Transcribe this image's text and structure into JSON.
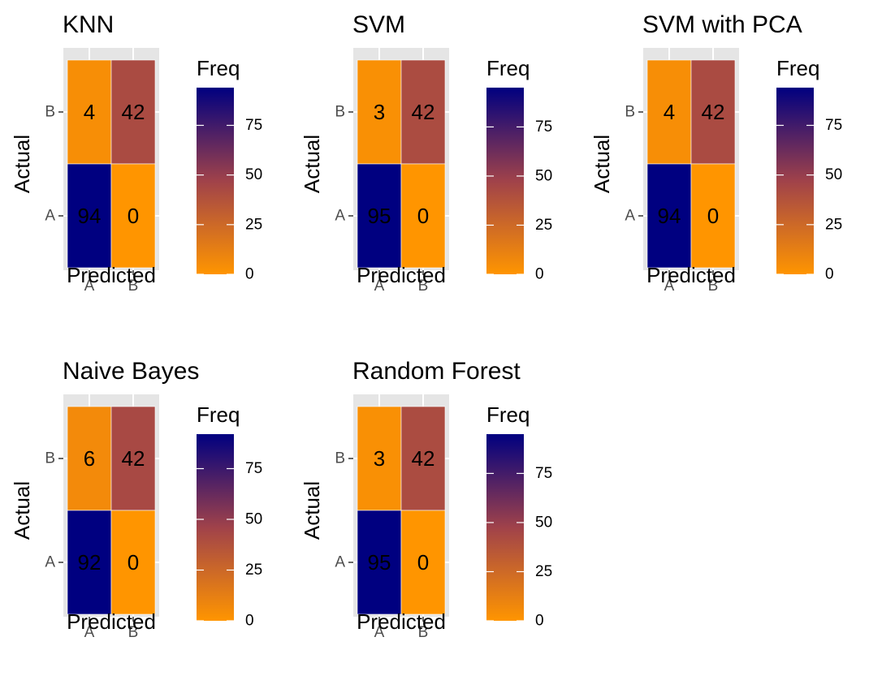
{
  "colors": {
    "low": "#FF9500",
    "mid": "#A0424A",
    "high": "#000080",
    "panel_bg": "#E5E5E5",
    "grid": "#FFFFFF",
    "text": "#000000",
    "tick_text": "#4D4D4D"
  },
  "chart_data": [
    {
      "type": "heatmap",
      "title": "KNN",
      "xlabel": "Predicted",
      "ylabel": "Actual",
      "x_categories": [
        "A",
        "B"
      ],
      "y_categories": [
        "A",
        "B"
      ],
      "cells": [
        {
          "actual": "B",
          "predicted": "A",
          "value": 4
        },
        {
          "actual": "B",
          "predicted": "B",
          "value": 42
        },
        {
          "actual": "A",
          "predicted": "A",
          "value": 94
        },
        {
          "actual": "A",
          "predicted": "B",
          "value": 0
        }
      ],
      "legend": {
        "title": "Freq",
        "breaks": [
          0,
          25,
          50,
          75
        ],
        "limits": [
          0,
          94
        ]
      }
    },
    {
      "type": "heatmap",
      "title": "SVM",
      "xlabel": "Predicted",
      "ylabel": "Actual",
      "x_categories": [
        "A",
        "B"
      ],
      "y_categories": [
        "A",
        "B"
      ],
      "cells": [
        {
          "actual": "B",
          "predicted": "A",
          "value": 3
        },
        {
          "actual": "B",
          "predicted": "B",
          "value": 42
        },
        {
          "actual": "A",
          "predicted": "A",
          "value": 95
        },
        {
          "actual": "A",
          "predicted": "B",
          "value": 0
        }
      ],
      "legend": {
        "title": "Freq",
        "breaks": [
          0,
          25,
          50,
          75
        ],
        "limits": [
          0,
          95
        ]
      }
    },
    {
      "type": "heatmap",
      "title": "SVM with PCA",
      "xlabel": "Predicted",
      "ylabel": "Actual",
      "x_categories": [
        "A",
        "B"
      ],
      "y_categories": [
        "A",
        "B"
      ],
      "cells": [
        {
          "actual": "B",
          "predicted": "A",
          "value": 4
        },
        {
          "actual": "B",
          "predicted": "B",
          "value": 42
        },
        {
          "actual": "A",
          "predicted": "A",
          "value": 94
        },
        {
          "actual": "A",
          "predicted": "B",
          "value": 0
        }
      ],
      "legend": {
        "title": "Freq",
        "breaks": [
          0,
          25,
          50,
          75
        ],
        "limits": [
          0,
          94
        ]
      }
    },
    {
      "type": "heatmap",
      "title": "Naive Bayes",
      "xlabel": "Predicted",
      "ylabel": "Actual",
      "x_categories": [
        "A",
        "B"
      ],
      "y_categories": [
        "A",
        "B"
      ],
      "cells": [
        {
          "actual": "B",
          "predicted": "A",
          "value": 6
        },
        {
          "actual": "B",
          "predicted": "B",
          "value": 42
        },
        {
          "actual": "A",
          "predicted": "A",
          "value": 92
        },
        {
          "actual": "A",
          "predicted": "B",
          "value": 0
        }
      ],
      "legend": {
        "title": "Freq",
        "breaks": [
          0,
          25,
          50,
          75
        ],
        "limits": [
          0,
          92
        ]
      }
    },
    {
      "type": "heatmap",
      "title": "Random Forest",
      "xlabel": "Predicted",
      "ylabel": "Actual",
      "x_categories": [
        "A",
        "B"
      ],
      "y_categories": [
        "A",
        "B"
      ],
      "cells": [
        {
          "actual": "B",
          "predicted": "A",
          "value": 3
        },
        {
          "actual": "B",
          "predicted": "B",
          "value": 42
        },
        {
          "actual": "A",
          "predicted": "A",
          "value": 95
        },
        {
          "actual": "A",
          "predicted": "B",
          "value": 0
        }
      ],
      "legend": {
        "title": "Freq",
        "breaks": [
          0,
          25,
          50,
          75
        ],
        "limits": [
          0,
          95
        ]
      }
    }
  ]
}
